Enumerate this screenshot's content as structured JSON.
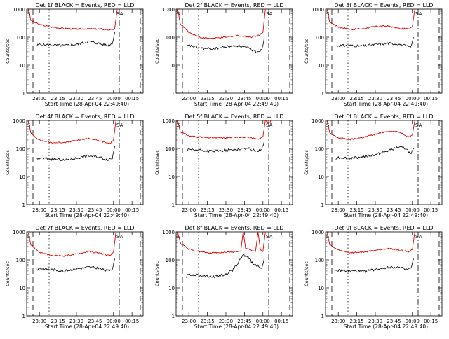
{
  "figure": {
    "xlabel": "Start Time (28-Apr-04 22:49:40)",
    "ylabel": "Counts/sec",
    "series_colors": {
      "events": "#000000",
      "lld": "#e00000"
    }
  },
  "chart_data": [
    {
      "type": "line",
      "title": "Det 1f BLACK = Events, RED = LLD",
      "xlabel": "Start Time (28-Apr-04 22:49:40)",
      "ylabel": "Counts/sec",
      "marker_labels": [
        "S",
        "SA"
      ],
      "yscale": "log",
      "ylim": [
        1,
        1000
      ],
      "xlim": [
        "22:49:40",
        "00:24:00"
      ],
      "x_ticks": [
        "23:00",
        "23:15",
        "23:30",
        "23:45",
        "00:00",
        "00:15"
      ],
      "y_ticks": [
        "1",
        "10",
        "100",
        "1000"
      ],
      "grid": false,
      "lld_x": [
        "22:51",
        "22:53",
        "23:00",
        "23:10",
        "23:20",
        "23:30",
        "23:40",
        "23:50",
        "23:58",
        "00:01",
        "00:03"
      ],
      "lld_y": [
        1000,
        400,
        280,
        230,
        205,
        195,
        200,
        195,
        180,
        200,
        1000
      ],
      "events_x": [
        "22:58",
        "23:00",
        "23:10",
        "23:20",
        "23:30",
        "23:40",
        "23:48",
        "23:55",
        "23:59",
        "00:01"
      ],
      "events_y": [
        50,
        55,
        52,
        50,
        55,
        70,
        60,
        50,
        60,
        150
      ]
    },
    {
      "type": "line",
      "title": "Det 2f BLACK = Events, RED = LLD",
      "xlabel": "Start Time (28-Apr-04 22:49:40)",
      "ylabel": "Counts/sec",
      "marker_labels": [
        "S",
        "SA"
      ],
      "yscale": "log",
      "ylim": [
        1,
        1000
      ],
      "xlim": [
        "22:49:40",
        "00:24:00"
      ],
      "x_ticks": [
        "23:00",
        "23:15",
        "23:30",
        "23:45",
        "00:00",
        "00:15"
      ],
      "y_ticks": [
        "1",
        "10",
        "100",
        "1000"
      ],
      "grid": false,
      "lld_x": [
        "22:51",
        "22:53",
        "23:00",
        "23:10",
        "23:20",
        "23:30",
        "23:40",
        "23:50",
        "23:57",
        "00:00",
        "00:02"
      ],
      "lld_y": [
        1000,
        300,
        150,
        95,
        90,
        100,
        115,
        100,
        120,
        150,
        1000
      ],
      "events_x": [
        "22:58",
        "23:00",
        "23:10",
        "23:20",
        "23:30",
        "23:40",
        "23:48",
        "23:55",
        "23:59",
        "00:01"
      ],
      "events_y": [
        45,
        50,
        40,
        38,
        45,
        50,
        40,
        30,
        35,
        90
      ]
    },
    {
      "type": "line",
      "title": "Det 3f BLACK = Events, RED = LLD",
      "xlabel": "Start Time (28-Apr-04 22:49:40)",
      "ylabel": "Counts/sec",
      "marker_labels": [
        "S",
        "SA"
      ],
      "yscale": "log",
      "ylim": [
        1,
        1000
      ],
      "xlim": [
        "22:49:40",
        "00:24:00"
      ],
      "x_ticks": [
        "23:00",
        "23:15",
        "23:30",
        "23:45",
        "00:00",
        "00:15"
      ],
      "y_ticks": [
        "1",
        "10",
        "100",
        "1000"
      ],
      "grid": false,
      "lld_x": [
        "22:51",
        "22:53",
        "23:00",
        "23:10",
        "23:20",
        "23:30",
        "23:40",
        "23:50",
        "23:57",
        "00:00",
        "00:02"
      ],
      "lld_y": [
        1000,
        350,
        230,
        190,
        200,
        240,
        250,
        200,
        200,
        240,
        1000
      ],
      "events_x": [
        "22:58",
        "23:00",
        "23:10",
        "23:20",
        "23:30",
        "23:40",
        "23:48",
        "23:55",
        "23:59",
        "00:01"
      ],
      "events_y": [
        48,
        50,
        50,
        48,
        55,
        60,
        58,
        48,
        45,
        100
      ]
    },
    {
      "type": "line",
      "title": "Det 4f BLACK = Events, RED = LLD",
      "xlabel": "Start Time (28-Apr-04 22:49:40)",
      "ylabel": "Counts/sec",
      "marker_labels": [
        "S",
        "SA"
      ],
      "yscale": "log",
      "ylim": [
        1,
        1000
      ],
      "xlim": [
        "22:49:40",
        "00:24:00"
      ],
      "x_ticks": [
        "23:00",
        "23:15",
        "23:30",
        "23:45",
        "00:00",
        "00:15"
      ],
      "y_ticks": [
        "1",
        "10",
        "100",
        "1000"
      ],
      "grid": false,
      "lld_x": [
        "22:51",
        "22:53",
        "23:00",
        "23:10",
        "23:20",
        "23:30",
        "23:40",
        "23:50",
        "23:57",
        "00:00",
        "00:02"
      ],
      "lld_y": [
        1000,
        350,
        200,
        160,
        165,
        190,
        230,
        180,
        150,
        200,
        1000
      ],
      "events_x": [
        "22:58",
        "23:00",
        "23:10",
        "23:20",
        "23:30",
        "23:40",
        "23:48",
        "23:55",
        "23:59",
        "00:01"
      ],
      "events_y": [
        40,
        45,
        42,
        38,
        45,
        55,
        50,
        40,
        45,
        120
      ]
    },
    {
      "type": "line",
      "title": "Det 5f BLACK = Events, RED = LLD",
      "xlabel": "Start Time (28-Apr-04 22:49:40)",
      "ylabel": "Counts/sec",
      "marker_labels": [
        "S",
        "SA"
      ],
      "yscale": "log",
      "ylim": [
        1,
        1000
      ],
      "xlim": [
        "22:49:40",
        "00:24:00"
      ],
      "x_ticks": [
        "23:00",
        "23:15",
        "23:30",
        "23:45",
        "00:00",
        "00:15"
      ],
      "y_ticks": [
        "1",
        "10",
        "100",
        "1000"
      ],
      "grid": false,
      "lld_x": [
        "22:51",
        "22:53",
        "23:00",
        "23:10",
        "23:20",
        "23:30",
        "23:40",
        "23:50",
        "23:57",
        "00:00",
        "00:02",
        "00:05",
        "00:07"
      ],
      "lld_y": [
        1000,
        400,
        280,
        250,
        240,
        240,
        260,
        240,
        220,
        260,
        1000,
        800,
        1000
      ],
      "events_x": [
        "22:58",
        "23:00",
        "23:10",
        "23:20",
        "23:30",
        "23:40",
        "23:48",
        "23:55",
        "23:59",
        "00:01"
      ],
      "events_y": [
        80,
        90,
        85,
        80,
        85,
        95,
        100,
        80,
        90,
        180
      ]
    },
    {
      "type": "line",
      "title": "Det 6f BLACK = Events, RED = LLD",
      "xlabel": "Start Time (28-Apr-04 22:49:40)",
      "ylabel": "Counts/sec",
      "marker_labels": [
        "S",
        "SA"
      ],
      "yscale": "log",
      "ylim": [
        1,
        1000
      ],
      "xlim": [
        "22:49:40",
        "00:24:00"
      ],
      "x_ticks": [
        "23:00",
        "23:15",
        "23:30",
        "23:45",
        "00:00",
        "00:15"
      ],
      "y_ticks": [
        "1",
        "10",
        "100",
        "1000"
      ],
      "grid": false,
      "lld_x": [
        "22:51",
        "22:53",
        "23:00",
        "23:10",
        "23:20",
        "23:30",
        "23:40",
        "23:50",
        "23:57",
        "00:00",
        "00:02"
      ],
      "lld_y": [
        1000,
        350,
        240,
        210,
        250,
        320,
        420,
        380,
        260,
        300,
        1000
      ],
      "events_x": [
        "22:58",
        "23:00",
        "23:10",
        "23:20",
        "23:30",
        "23:40",
        "23:48",
        "23:55",
        "23:59",
        "00:01"
      ],
      "events_y": [
        45,
        48,
        45,
        50,
        60,
        80,
        110,
        100,
        60,
        100
      ]
    },
    {
      "type": "line",
      "title": "Det 7f BLACK = Events, RED = LLD",
      "xlabel": "Start Time (28-Apr-04 22:49:40)",
      "ylabel": "Counts/sec",
      "marker_labels": [
        "S",
        "SA"
      ],
      "yscale": "log",
      "ylim": [
        1,
        1000
      ],
      "xlim": [
        "22:49:40",
        "00:24:00"
      ],
      "x_ticks": [
        "23:00",
        "23:15",
        "23:30",
        "23:45",
        "00:00",
        "00:15"
      ],
      "y_ticks": [
        "1",
        "10",
        "100",
        "1000"
      ],
      "grid": false,
      "lld_x": [
        "22:51",
        "22:53",
        "23:00",
        "23:10",
        "23:20",
        "23:30",
        "23:40",
        "23:50",
        "23:57",
        "00:00",
        "00:02"
      ],
      "lld_y": [
        1000,
        350,
        190,
        140,
        140,
        160,
        200,
        170,
        140,
        190,
        1000
      ],
      "events_x": [
        "22:58",
        "23:00",
        "23:10",
        "23:20",
        "23:30",
        "23:40",
        "23:48",
        "23:55",
        "23:59",
        "00:01"
      ],
      "events_y": [
        45,
        50,
        45,
        40,
        48,
        55,
        50,
        40,
        48,
        110
      ]
    },
    {
      "type": "line",
      "title": "Det 8f BLACK = Events, RED = LLD",
      "xlabel": "Start Time (28-Apr-04 22:49:40)",
      "ylabel": "Counts/sec",
      "marker_labels": [
        "S",
        "SA"
      ],
      "yscale": "log",
      "ylim": [
        1,
        1000
      ],
      "xlim": [
        "22:49:40",
        "00:24:00"
      ],
      "x_ticks": [
        "23:00",
        "23:15",
        "23:30",
        "23:45",
        "00:00",
        "00:15"
      ],
      "y_ticks": [
        "1",
        "10",
        "100",
        "1000"
      ],
      "grid": false,
      "lld_x": [
        "22:51",
        "22:53",
        "23:00",
        "23:10",
        "23:20",
        "23:30",
        "23:40",
        "23:42",
        "23:44",
        "23:46",
        "23:50",
        "23:54",
        "23:56",
        "23:58",
        "00:00",
        "00:02"
      ],
      "lld_y": [
        1000,
        400,
        240,
        190,
        180,
        185,
        200,
        200,
        1000,
        250,
        230,
        200,
        1000,
        230,
        200,
        1000
      ],
      "events_x": [
        "22:58",
        "23:00",
        "23:10",
        "23:20",
        "23:30",
        "23:36",
        "23:40",
        "23:44",
        "23:48",
        "23:52",
        "23:56",
        "23:59",
        "00:01"
      ],
      "events_y": [
        25,
        30,
        28,
        25,
        30,
        45,
        80,
        150,
        130,
        70,
        60,
        50,
        110
      ]
    },
    {
      "type": "line",
      "title": "Det 9f BLACK = Events, RED = LLD",
      "xlabel": "Start Time (28-Apr-04 22:49:40)",
      "ylabel": "Counts/sec",
      "marker_labels": [
        "S",
        "SA"
      ],
      "yscale": "log",
      "ylim": [
        1,
        1000
      ],
      "xlim": [
        "22:49:40",
        "00:24:00"
      ],
      "x_ticks": [
        "23:00",
        "23:15",
        "23:30",
        "23:45",
        "00:00",
        "00:15"
      ],
      "y_ticks": [
        "1",
        "10",
        "100",
        "1000"
      ],
      "grid": false,
      "lld_x": [
        "22:51",
        "22:53",
        "23:00",
        "23:10",
        "23:20",
        "23:30",
        "23:40",
        "23:50",
        "23:57",
        "00:00",
        "00:02"
      ],
      "lld_y": [
        1000,
        350,
        220,
        180,
        190,
        220,
        260,
        220,
        200,
        230,
        1000
      ],
      "events_x": [
        "22:58",
        "23:00",
        "23:10",
        "23:20",
        "23:30",
        "23:40",
        "23:48",
        "23:55",
        "23:59",
        "00:01"
      ],
      "events_y": [
        40,
        42,
        40,
        38,
        45,
        55,
        55,
        45,
        50,
        110
      ]
    }
  ]
}
